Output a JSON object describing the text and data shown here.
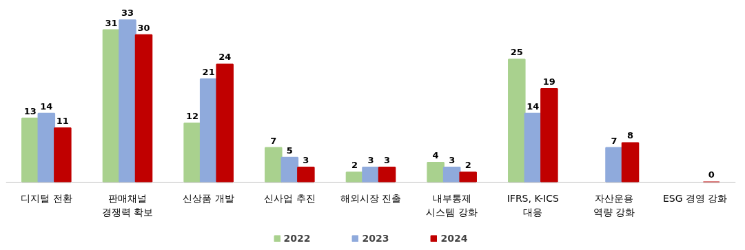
{
  "chart_data": {
    "type": "bar",
    "categories": [
      "디지털 전환",
      "판매채널\n경쟁력 확보",
      "신상품 개발",
      "신사업 추진",
      "해외시장 진출",
      "내부통제\n시스템 강화",
      "IFRS, K-ICS\n대응",
      "자산운용\n역량 강화",
      "ESG 경영 강화"
    ],
    "series": [
      {
        "name": "2022",
        "color": "#a9d18e",
        "values": [
          13,
          31,
          12,
          7,
          2,
          4,
          25,
          null,
          null
        ]
      },
      {
        "name": "2023",
        "color": "#8faadc",
        "values": [
          14,
          33,
          21,
          5,
          3,
          3,
          14,
          7,
          null
        ]
      },
      {
        "name": "2024",
        "color": "#c00000",
        "values": [
          11,
          30,
          24,
          3,
          3,
          2,
          19,
          8,
          0
        ]
      }
    ],
    "data_labels": true,
    "legend": "bottom",
    "grid": false
  }
}
